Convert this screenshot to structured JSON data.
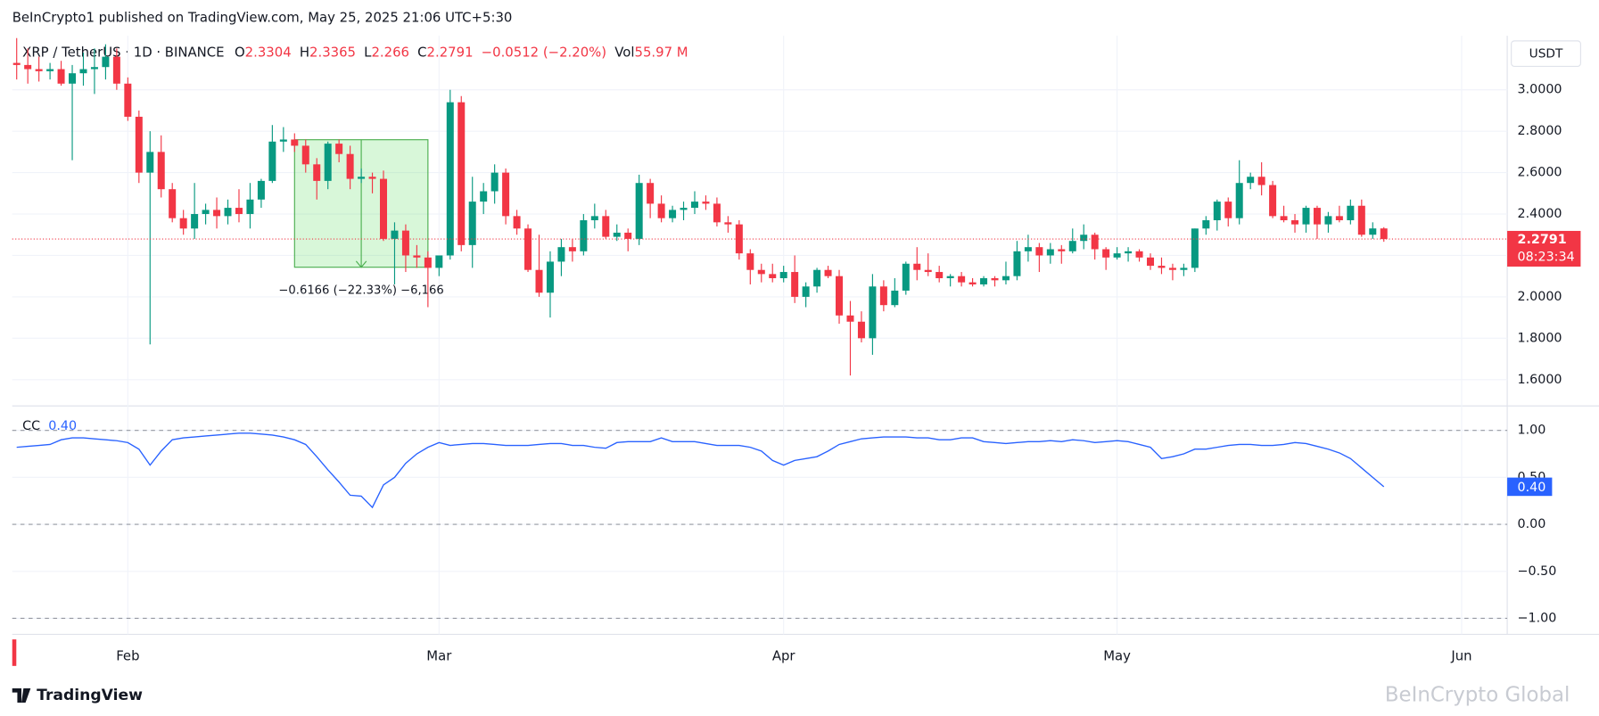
{
  "header": "BeInCrypto1 published on TradingView.com, May 25, 2025 21:06 UTC+5:30",
  "footer_logo": "TradingView",
  "watermark": "BeInCrypto Global",
  "chart_data": {
    "type": "candlestick",
    "title": "XRP / TetherUS · 1D · BINANCE",
    "legend": {
      "o": "O",
      "h": "H",
      "l": "L",
      "c": "C",
      "change": "−0.0512 (−2.20%)",
      "vol": "Vol",
      "vol_value": "55.97 M"
    },
    "currency": "USDT",
    "countdown": "08:23:34",
    "open": [
      3.13,
      3.12,
      3.1,
      3.09,
      3.1,
      3.03,
      3.08,
      3.1,
      3.11,
      3.16,
      3.03,
      2.87,
      2.6,
      2.7,
      2.52,
      2.38,
      2.33,
      2.4,
      2.42,
      2.39,
      2.43,
      2.4,
      2.47,
      2.56,
      2.75,
      2.76,
      2.73,
      2.64,
      2.56,
      2.74,
      2.69,
      2.57,
      2.58,
      2.57,
      2.28,
      2.32,
      2.2,
      2.19,
      2.14,
      2.2,
      2.94,
      2.25,
      2.46,
      2.51,
      2.6,
      2.39,
      2.33,
      2.13,
      2.02,
      2.17,
      2.24,
      2.22,
      2.37,
      2.39,
      2.29,
      2.31,
      2.28,
      2.55,
      2.45,
      2.38,
      2.42,
      2.43,
      2.46,
      2.45,
      2.36,
      2.35,
      2.21,
      2.13,
      2.11,
      2.09,
      2.12,
      2.0,
      2.05,
      2.13,
      2.1,
      1.91,
      1.88,
      1.8,
      2.05,
      1.96,
      2.03,
      2.16,
      2.13,
      2.12,
      2.09,
      2.1,
      2.07,
      2.06,
      2.09,
      2.08,
      2.1,
      2.22,
      2.24,
      2.2,
      2.23,
      2.22,
      2.27,
      2.3,
      2.23,
      2.19,
      2.21,
      2.22,
      2.19,
      2.15,
      2.14,
      2.13,
      2.14,
      2.33,
      2.37,
      2.46,
      2.38,
      2.55,
      2.58,
      2.54,
      2.39,
      2.37,
      2.35,
      2.43,
      2.35,
      2.39,
      2.37,
      2.44,
      2.3,
      2.3304
    ],
    "high": [
      3.25,
      3.2,
      3.16,
      3.13,
      3.14,
      3.12,
      3.18,
      3.2,
      3.22,
      3.2,
      3.06,
      2.9,
      2.8,
      2.78,
      2.55,
      2.42,
      2.55,
      2.45,
      2.48,
      2.47,
      2.52,
      2.55,
      2.57,
      2.83,
      2.82,
      2.79,
      2.76,
      2.67,
      2.75,
      2.76,
      2.73,
      2.62,
      2.6,
      2.61,
      2.36,
      2.35,
      2.25,
      2.22,
      2.2,
      3.0,
      2.97,
      2.58,
      2.55,
      2.64,
      2.62,
      2.42,
      2.35,
      2.3,
      2.22,
      2.28,
      2.28,
      2.4,
      2.45,
      2.42,
      2.35,
      2.33,
      2.59,
      2.57,
      2.49,
      2.44,
      2.46,
      2.51,
      2.49,
      2.48,
      2.39,
      2.37,
      2.23,
      2.16,
      2.16,
      2.15,
      2.2,
      2.07,
      2.14,
      2.15,
      2.13,
      1.98,
      1.93,
      2.11,
      2.08,
      2.09,
      2.17,
      2.24,
      2.21,
      2.15,
      2.11,
      2.12,
      2.09,
      2.1,
      2.1,
      2.17,
      2.27,
      2.3,
      2.26,
      2.26,
      2.25,
      2.33,
      2.35,
      2.31,
      2.24,
      2.24,
      2.24,
      2.23,
      2.21,
      2.19,
      2.16,
      2.16,
      2.33,
      2.39,
      2.47,
      2.48,
      2.66,
      2.6,
      2.65,
      2.56,
      2.44,
      2.4,
      2.44,
      2.44,
      2.41,
      2.44,
      2.47,
      2.47,
      2.36,
      2.3365
    ],
    "low": [
      3.05,
      3.03,
      3.04,
      3.05,
      3.02,
      2.66,
      3.02,
      2.98,
      3.05,
      3.0,
      2.85,
      2.55,
      1.77,
      2.48,
      2.36,
      2.3,
      2.28,
      2.35,
      2.33,
      2.35,
      2.36,
      2.33,
      2.43,
      2.55,
      2.7,
      2.7,
      2.6,
      2.47,
      2.52,
      2.65,
      2.52,
      2.55,
      2.5,
      2.27,
      2.06,
      2.12,
      2.14,
      1.95,
      2.1,
      2.18,
      2.22,
      2.14,
      2.4,
      2.45,
      2.35,
      2.3,
      2.12,
      2.0,
      1.9,
      2.1,
      2.17,
      2.2,
      2.33,
      2.28,
      2.27,
      2.22,
      2.25,
      2.38,
      2.36,
      2.36,
      2.37,
      2.4,
      2.42,
      2.34,
      2.31,
      2.18,
      2.06,
      2.07,
      2.07,
      2.07,
      1.97,
      1.95,
      2.02,
      2.09,
      1.87,
      1.62,
      1.78,
      1.72,
      1.93,
      1.95,
      2.01,
      2.08,
      2.1,
      2.07,
      2.05,
      2.05,
      2.05,
      2.05,
      2.05,
      2.06,
      2.08,
      2.17,
      2.12,
      2.16,
      2.16,
      2.21,
      2.23,
      2.18,
      2.13,
      2.18,
      2.17,
      2.17,
      2.13,
      2.11,
      2.08,
      2.1,
      2.12,
      2.3,
      2.32,
      2.34,
      2.35,
      2.52,
      2.49,
      2.38,
      2.36,
      2.31,
      2.31,
      2.28,
      2.31,
      2.36,
      2.35,
      2.29,
      2.28,
      2.266
    ],
    "close": [
      3.12,
      3.1,
      3.09,
      3.1,
      3.03,
      3.08,
      3.1,
      3.11,
      3.16,
      3.03,
      2.87,
      2.6,
      2.7,
      2.52,
      2.38,
      2.33,
      2.4,
      2.42,
      2.39,
      2.43,
      2.4,
      2.47,
      2.56,
      2.75,
      2.76,
      2.73,
      2.64,
      2.56,
      2.74,
      2.69,
      2.57,
      2.58,
      2.57,
      2.28,
      2.32,
      2.2,
      2.19,
      2.14,
      2.2,
      2.94,
      2.25,
      2.46,
      2.51,
      2.6,
      2.39,
      2.33,
      2.13,
      2.02,
      2.17,
      2.24,
      2.22,
      2.37,
      2.39,
      2.29,
      2.31,
      2.28,
      2.55,
      2.45,
      2.38,
      2.42,
      2.43,
      2.46,
      2.45,
      2.36,
      2.35,
      2.21,
      2.13,
      2.11,
      2.09,
      2.12,
      2.0,
      2.05,
      2.13,
      2.1,
      1.91,
      1.88,
      1.8,
      2.05,
      1.96,
      2.03,
      2.16,
      2.13,
      2.12,
      2.09,
      2.1,
      2.07,
      2.06,
      2.09,
      2.08,
      2.1,
      2.22,
      2.24,
      2.2,
      2.23,
      2.22,
      2.27,
      2.3,
      2.23,
      2.19,
      2.21,
      2.22,
      2.19,
      2.15,
      2.14,
      2.13,
      2.14,
      2.33,
      2.37,
      2.46,
      2.38,
      2.55,
      2.58,
      2.54,
      2.39,
      2.37,
      2.35,
      2.43,
      2.35,
      2.39,
      2.37,
      2.44,
      2.3,
      2.3304,
      2.2791
    ],
    "up_color": "#089981",
    "down_color": "#f23645",
    "xlim": [
      -0.4,
      134.1
    ],
    "xticks": [
      {
        "value": 10,
        "label": "Feb"
      },
      {
        "value": 38,
        "label": "Mar"
      },
      {
        "value": 69,
        "label": "Apr"
      },
      {
        "value": 99,
        "label": "May"
      },
      {
        "value": 130,
        "label": "Jun"
      }
    ],
    "ylim": [
      1.473,
      3.261
    ],
    "yticks": [
      {
        "value": 1.6,
        "label": "1.6000"
      },
      {
        "value": 1.8,
        "label": "1.8000"
      },
      {
        "value": 2,
        "label": "2.0000"
      },
      {
        "value": 2.2,
        "label": "2.2000"
      },
      {
        "value": 2.4,
        "label": "2.4000"
      },
      {
        "value": 2.6,
        "label": "2.6000"
      },
      {
        "value": 2.8,
        "label": "2.8000"
      },
      {
        "value": 3,
        "label": "3.0000"
      }
    ],
    "grid": true,
    "measure": {
      "start": 25,
      "end": 37,
      "from": 2.759,
      "to": 2.143,
      "label": "−0.6166 (−22.33%) −6,166"
    },
    "indicator": {
      "name": "CC",
      "color": "#2962ff",
      "current_label": "0.40",
      "values": [
        0.82,
        0.83,
        0.84,
        0.85,
        0.9,
        0.92,
        0.92,
        0.91,
        0.9,
        0.89,
        0.87,
        0.8,
        0.63,
        0.78,
        0.9,
        0.92,
        0.93,
        0.94,
        0.95,
        0.96,
        0.97,
        0.97,
        0.96,
        0.95,
        0.93,
        0.9,
        0.85,
        0.72,
        0.58,
        0.45,
        0.31,
        0.3,
        0.18,
        0.42,
        0.5,
        0.65,
        0.75,
        0.82,
        0.87,
        0.84,
        0.85,
        0.86,
        0.86,
        0.85,
        0.84,
        0.84,
        0.84,
        0.85,
        0.86,
        0.86,
        0.84,
        0.84,
        0.82,
        0.81,
        0.87,
        0.88,
        0.88,
        0.88,
        0.92,
        0.88,
        0.88,
        0.88,
        0.86,
        0.84,
        0.84,
        0.84,
        0.82,
        0.78,
        0.68,
        0.63,
        0.68,
        0.7,
        0.72,
        0.78,
        0.85,
        0.88,
        0.91,
        0.92,
        0.93,
        0.93,
        0.93,
        0.92,
        0.92,
        0.9,
        0.9,
        0.92,
        0.92,
        0.88,
        0.87,
        0.86,
        0.87,
        0.88,
        0.88,
        0.89,
        0.88,
        0.9,
        0.89,
        0.87,
        0.88,
        0.89,
        0.88,
        0.85,
        0.82,
        0.7,
        0.72,
        0.75,
        0.8,
        0.8,
        0.82,
        0.84,
        0.85,
        0.85,
        0.84,
        0.84,
        0.85,
        0.87,
        0.86,
        0.83,
        0.8,
        0.76,
        0.7,
        0.6,
        0.5,
        0.4
      ],
      "ylim": [
        -1.17,
        1.26
      ],
      "yticks": [
        {
          "value": 1,
          "label": "1.00"
        },
        {
          "value": 0.5,
          "label": "0.50"
        },
        {
          "value": 0,
          "label": "0.00"
        },
        {
          "value": -0.5,
          "label": "−0.50"
        },
        {
          "value": -1,
          "label": "−1.00"
        }
      ],
      "bands": [
        1,
        0,
        -1
      ]
    }
  }
}
